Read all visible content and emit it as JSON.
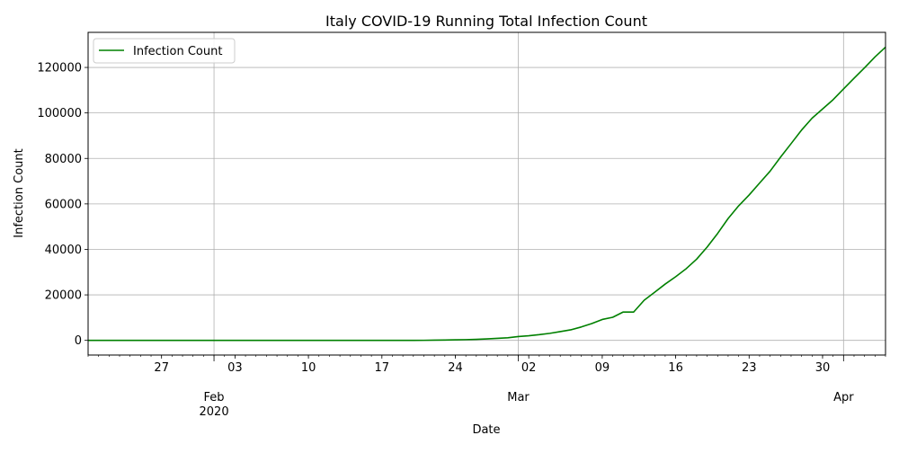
{
  "chart_data": {
    "type": "line",
    "title": "Italy COVID-19 Running Total Infection Count",
    "xlabel": "Date",
    "ylabel": "Infection Count",
    "x_range": [
      "2020-01-20",
      "2020-04-05"
    ],
    "ylim": [
      -6449,
      135429
    ],
    "yticks": [
      0,
      20000,
      40000,
      60000,
      80000,
      100000,
      120000
    ],
    "ytick_labels": [
      "0",
      "20000",
      "40000",
      "60000",
      "80000",
      "100000",
      "120000"
    ],
    "xticks_major": [
      {
        "date": "2020-02-01",
        "label": "Feb\n2020"
      },
      {
        "date": "2020-03-01",
        "label": "Mar"
      },
      {
        "date": "2020-04-01",
        "label": "Apr"
      }
    ],
    "xticks_minor_labeled": [
      {
        "date": "2020-01-27",
        "label": "27"
      },
      {
        "date": "2020-02-03",
        "label": "03"
      },
      {
        "date": "2020-02-10",
        "label": "10"
      },
      {
        "date": "2020-02-17",
        "label": "17"
      },
      {
        "date": "2020-02-24",
        "label": "24"
      },
      {
        "date": "2020-03-02",
        "label": "02"
      },
      {
        "date": "2020-03-09",
        "label": "09"
      },
      {
        "date": "2020-03-16",
        "label": "16"
      },
      {
        "date": "2020-03-23",
        "label": "23"
      },
      {
        "date": "2020-03-30",
        "label": "30"
      }
    ],
    "grid": true,
    "grid_on": "major",
    "legend_position": "top-left",
    "series": [
      {
        "name": "Infection Count",
        "color": "#008000",
        "points": [
          [
            "2020-01-20",
            0
          ],
          [
            "2020-01-25",
            0
          ],
          [
            "2020-01-31",
            2
          ],
          [
            "2020-02-05",
            2
          ],
          [
            "2020-02-10",
            3
          ],
          [
            "2020-02-15",
            3
          ],
          [
            "2020-02-20",
            3
          ],
          [
            "2020-02-21",
            20
          ],
          [
            "2020-02-22",
            79
          ],
          [
            "2020-02-23",
            150
          ],
          [
            "2020-02-24",
            229
          ],
          [
            "2020-02-25",
            322
          ],
          [
            "2020-02-26",
            453
          ],
          [
            "2020-02-27",
            655
          ],
          [
            "2020-02-28",
            888
          ],
          [
            "2020-02-29",
            1128
          ],
          [
            "2020-03-01",
            1694
          ],
          [
            "2020-03-02",
            2036
          ],
          [
            "2020-03-03",
            2502
          ],
          [
            "2020-03-04",
            3089
          ],
          [
            "2020-03-05",
            3858
          ],
          [
            "2020-03-06",
            4636
          ],
          [
            "2020-03-07",
            5883
          ],
          [
            "2020-03-08",
            7375
          ],
          [
            "2020-03-09",
            9172
          ],
          [
            "2020-03-10",
            10149
          ],
          [
            "2020-03-11",
            12462
          ],
          [
            "2020-03-12",
            12462
          ],
          [
            "2020-03-13",
            17660
          ],
          [
            "2020-03-14",
            21157
          ],
          [
            "2020-03-15",
            24747
          ],
          [
            "2020-03-16",
            27980
          ],
          [
            "2020-03-17",
            31506
          ],
          [
            "2020-03-18",
            35713
          ],
          [
            "2020-03-19",
            41035
          ],
          [
            "2020-03-20",
            47021
          ],
          [
            "2020-03-21",
            53578
          ],
          [
            "2020-03-22",
            59138
          ],
          [
            "2020-03-23",
            63927
          ],
          [
            "2020-03-24",
            69176
          ],
          [
            "2020-03-25",
            74386
          ],
          [
            "2020-03-26",
            80589
          ],
          [
            "2020-03-27",
            86498
          ],
          [
            "2020-03-28",
            92472
          ],
          [
            "2020-03-29",
            97689
          ],
          [
            "2020-03-30",
            101739
          ],
          [
            "2020-03-31",
            105792
          ],
          [
            "2020-04-01",
            110574
          ],
          [
            "2020-04-02",
            115242
          ],
          [
            "2020-04-03",
            119827
          ],
          [
            "2020-04-04",
            124632
          ],
          [
            "2020-04-05",
            128948
          ]
        ]
      }
    ]
  }
}
